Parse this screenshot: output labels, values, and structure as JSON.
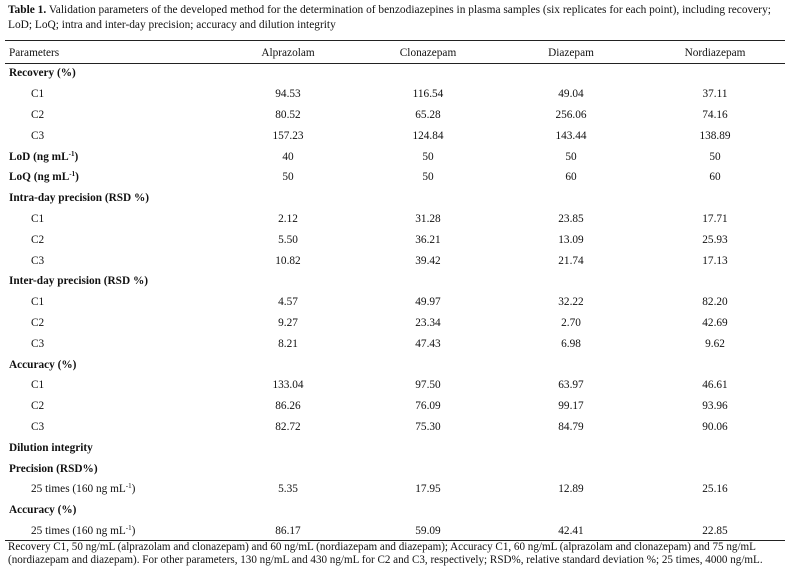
{
  "caption": {
    "label": "Table 1.",
    "text": " Validation parameters of the developed method for the determination of benzodiazepines in plasma samples (six replicates for each point), including recovery; LoD; LoQ; intra and inter-day precision; accuracy and dilution integrity"
  },
  "header": [
    "Parameters",
    "Alprazolam",
    "Clonazepam",
    "Diazepam",
    "Nordiazepam"
  ],
  "sections": [
    {
      "title": "Recovery (%)",
      "rows": [
        {
          "label": "C1",
          "values": [
            "94.53",
            "116.54",
            "49.04",
            "37.11"
          ]
        },
        {
          "label": "C2",
          "values": [
            "80.52",
            "65.28",
            "256.06",
            "74.16"
          ]
        },
        {
          "label": "C3",
          "values": [
            "157.23",
            "124.84",
            "143.44",
            "138.89"
          ]
        }
      ]
    },
    {
      "title": "LoD (ng mL",
      "sup": "-1",
      "close": ")",
      "values": [
        "40",
        "50",
        "50",
        "50"
      ],
      "rows": []
    },
    {
      "title": "LoQ (ng mL",
      "sup": "-1",
      "close": ")",
      "values": [
        "50",
        "50",
        "60",
        "60"
      ],
      "rows": []
    },
    {
      "title": "Intra-day precision (RSD %)",
      "rows": [
        {
          "label": "C1",
          "values": [
            "2.12",
            "31.28",
            "23.85",
            "17.71"
          ]
        },
        {
          "label": "C2",
          "values": [
            "5.50",
            "36.21",
            "13.09",
            "25.93"
          ]
        },
        {
          "label": "C3",
          "values": [
            "10.82",
            "39.42",
            "21.74",
            "17.13"
          ]
        }
      ]
    },
    {
      "title": "Inter-day precision (RSD %)",
      "rows": [
        {
          "label": "C1",
          "values": [
            "4.57",
            "49.97",
            "32.22",
            "82.20"
          ]
        },
        {
          "label": "C2",
          "values": [
            "9.27",
            "23.34",
            "2.70",
            "42.69"
          ]
        },
        {
          "label": "C3",
          "values": [
            "8.21",
            "47.43",
            "6.98",
            "9.62"
          ]
        }
      ]
    },
    {
      "title": "Accuracy (%)",
      "rows": [
        {
          "label": "C1",
          "values": [
            "133.04",
            "97.50",
            "63.97",
            "46.61"
          ]
        },
        {
          "label": "C2",
          "values": [
            "86.26",
            "76.09",
            "99.17",
            "93.96"
          ]
        },
        {
          "label": "C3",
          "values": [
            "82.72",
            "75.30",
            "84.79",
            "90.06"
          ]
        }
      ]
    },
    {
      "title": "Dilution integrity",
      "rows": []
    },
    {
      "title": "Precision (RSD%)",
      "rows": [
        {
          "label": "25 times (160 ng mL",
          "sup": "-1",
          "close": ")",
          "values": [
            "5.35",
            "17.95",
            "12.89",
            "25.16"
          ]
        }
      ]
    },
    {
      "title": "Accuracy (%)",
      "rows": [
        {
          "label": "25 times (160 ng mL",
          "sup": "-1",
          "close": ")",
          "values": [
            "86.17",
            "59.09",
            "42.41",
            "22.85"
          ]
        }
      ]
    }
  ],
  "footnote": "Recovery C1, 50 ng/mL (alprazolam and clonazepam) and 60 ng/mL (nordiazepam and diazepam); Accuracy C1, 60 ng/mL (alprazolam and clonazepam) and 75 ng/mL (nordiazepam and diazepam). For other parameters, 130 ng/mL and 430 ng/mL for C2 and C3, respectively; RSD%, relative standard deviation %; 25 times, 4000 ng/mL."
}
